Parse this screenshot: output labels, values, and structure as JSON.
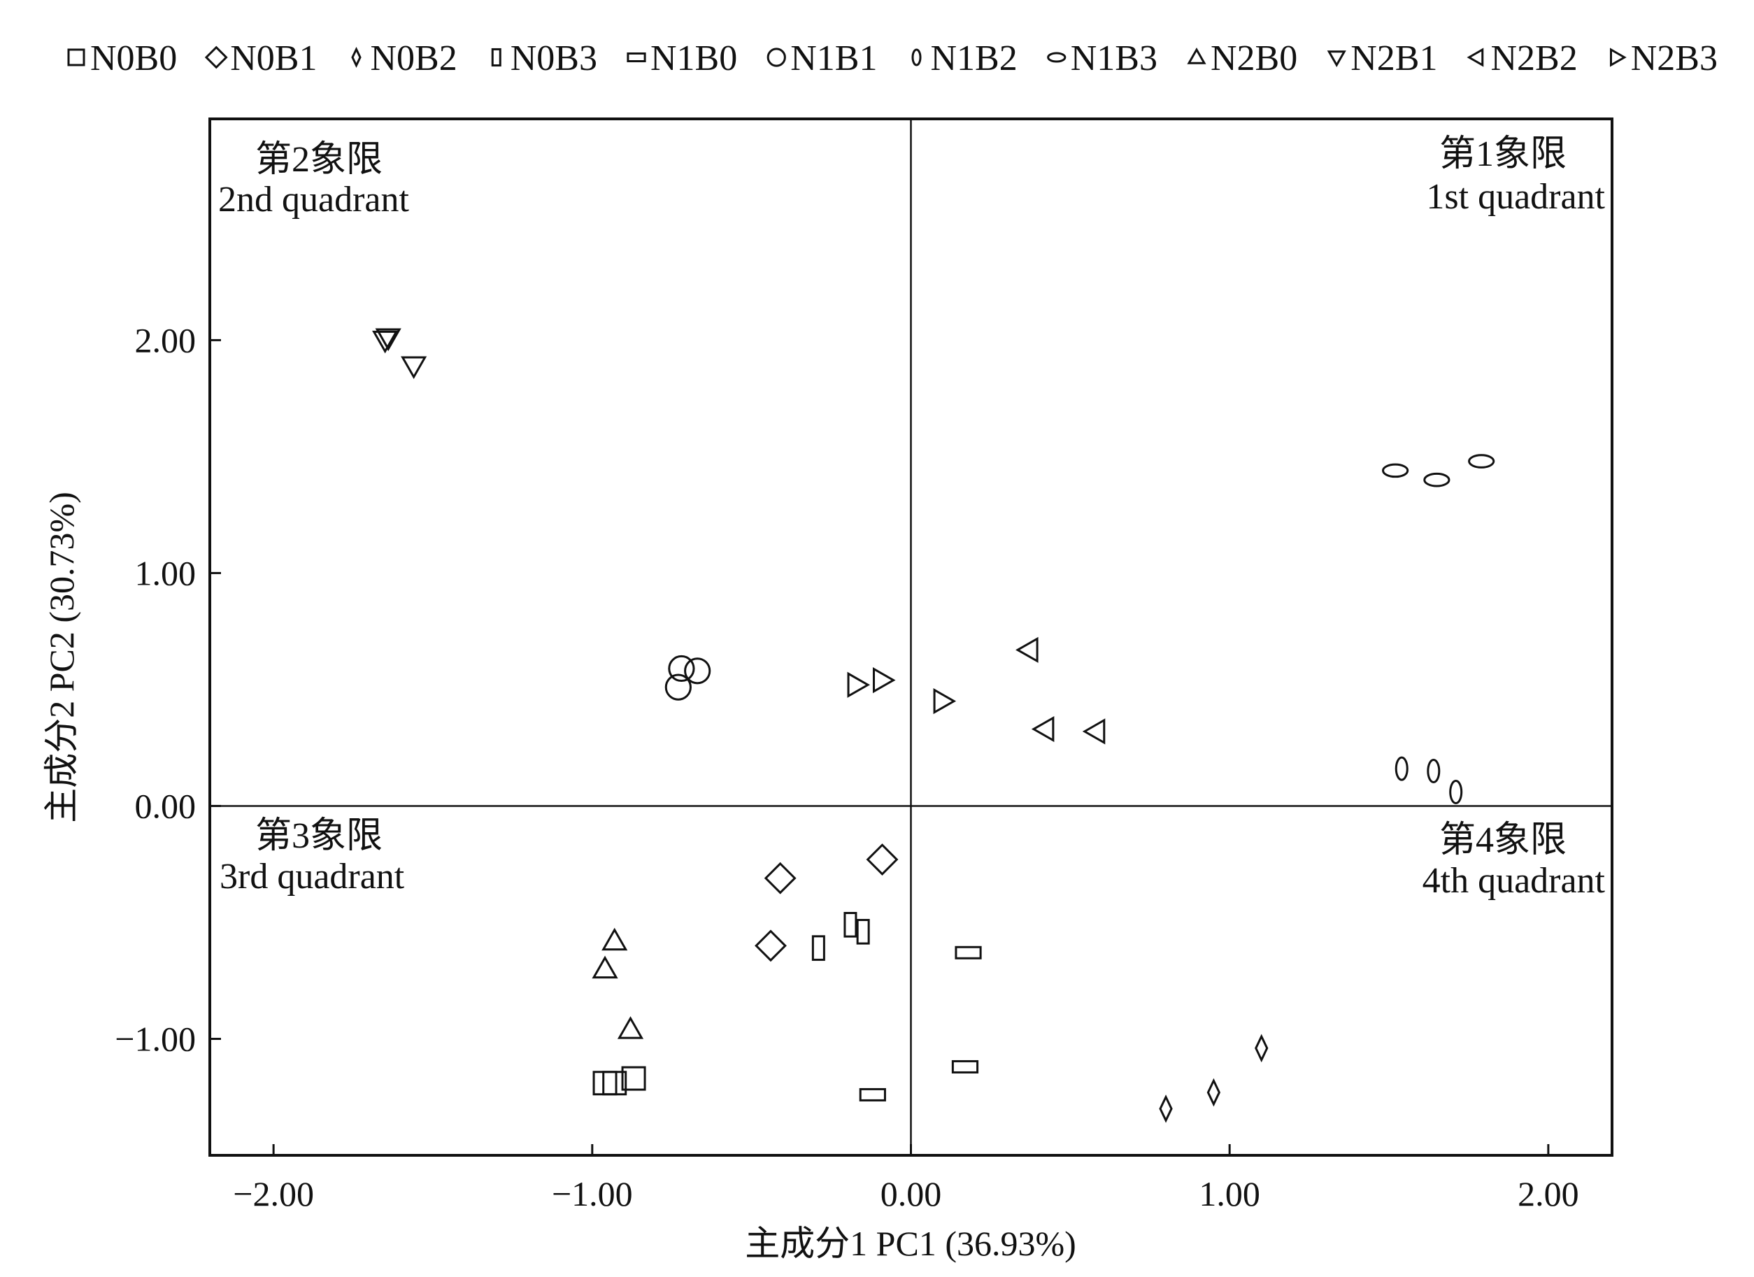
{
  "chart_data": {
    "type": "scatter",
    "title": "",
    "xlabel": "主成分1 PC1 (36.93%)",
    "ylabel": "主成分2 PC2 (30.73%)",
    "xlim": [
      -2.2,
      2.2
    ],
    "ylim": [
      -1.5,
      2.95
    ],
    "x_ticks": [
      -2.0,
      -1.0,
      0.0,
      1.0,
      2.0
    ],
    "x_tick_labels": [
      "−2.00",
      "−1.00",
      "0.00",
      "1.00",
      "2.00"
    ],
    "y_ticks": [
      -1.0,
      0.0,
      1.0,
      2.0
    ],
    "y_tick_labels": [
      "−1.00",
      "0.00",
      "1.00",
      "2.00"
    ],
    "grid": false,
    "reference_lines": {
      "x": 0,
      "y": 0
    },
    "legend_position": "top",
    "quadrant_labels": [
      {
        "id": "q2",
        "line1": "第2象限",
        "line2": "2nd quadrant",
        "position": "top-left"
      },
      {
        "id": "q1",
        "line1": "第1象限",
        "line2": "1st quadrant",
        "position": "top-right"
      },
      {
        "id": "q3",
        "line1": "第3象限",
        "line2": "3rd quadrant",
        "position": "bottom-left"
      },
      {
        "id": "q4",
        "line1": "第4象限",
        "line2": "4th quadrant",
        "position": "bottom-right"
      }
    ],
    "series": [
      {
        "name": "N0B0",
        "marker": "square",
        "points": [
          [
            -0.96,
            -1.19
          ],
          [
            -0.93,
            -1.19
          ],
          [
            -0.87,
            -1.17
          ]
        ]
      },
      {
        "name": "N0B1",
        "marker": "diamond",
        "points": [
          [
            -0.41,
            -0.31
          ],
          [
            -0.44,
            -0.6
          ],
          [
            -0.09,
            -0.23
          ]
        ]
      },
      {
        "name": "N0B2",
        "marker": "thin-diamond",
        "points": [
          [
            0.8,
            -1.3
          ],
          [
            0.95,
            -1.23
          ],
          [
            1.1,
            -1.04
          ]
        ]
      },
      {
        "name": "N0B3",
        "marker": "tall-rect",
        "points": [
          [
            -0.29,
            -0.61
          ],
          [
            -0.19,
            -0.51
          ],
          [
            -0.15,
            -0.54
          ]
        ]
      },
      {
        "name": "N1B0",
        "marker": "wide-rect",
        "points": [
          [
            0.18,
            -0.63
          ],
          [
            0.17,
            -1.12
          ],
          [
            -0.12,
            -1.24
          ]
        ]
      },
      {
        "name": "N1B1",
        "marker": "circle",
        "points": [
          [
            -0.73,
            0.51
          ],
          [
            -0.72,
            0.59
          ],
          [
            -0.67,
            0.58
          ]
        ]
      },
      {
        "name": "N1B2",
        "marker": "tall-ellipse",
        "points": [
          [
            1.54,
            0.16
          ],
          [
            1.64,
            0.15
          ],
          [
            1.71,
            0.06
          ]
        ]
      },
      {
        "name": "N1B3",
        "marker": "wide-ellipse",
        "points": [
          [
            1.52,
            1.44
          ],
          [
            1.65,
            1.4
          ],
          [
            1.79,
            1.48
          ]
        ]
      },
      {
        "name": "N2B0",
        "marker": "triangle-up",
        "points": [
          [
            -0.93,
            -0.58
          ],
          [
            -0.96,
            -0.7
          ],
          [
            -0.88,
            -0.96
          ]
        ]
      },
      {
        "name": "N2B1",
        "marker": "triangle-down",
        "points": [
          [
            -1.65,
            2.0
          ],
          [
            -1.64,
            2.01
          ],
          [
            -1.56,
            1.89
          ]
        ]
      },
      {
        "name": "N2B2",
        "marker": "triangle-left",
        "points": [
          [
            0.37,
            0.67
          ],
          [
            0.42,
            0.33
          ],
          [
            0.58,
            0.32
          ]
        ]
      },
      {
        "name": "N2B3",
        "marker": "triangle-right",
        "points": [
          [
            -0.17,
            0.52
          ],
          [
            -0.09,
            0.54
          ],
          [
            0.1,
            0.45
          ]
        ]
      }
    ]
  }
}
